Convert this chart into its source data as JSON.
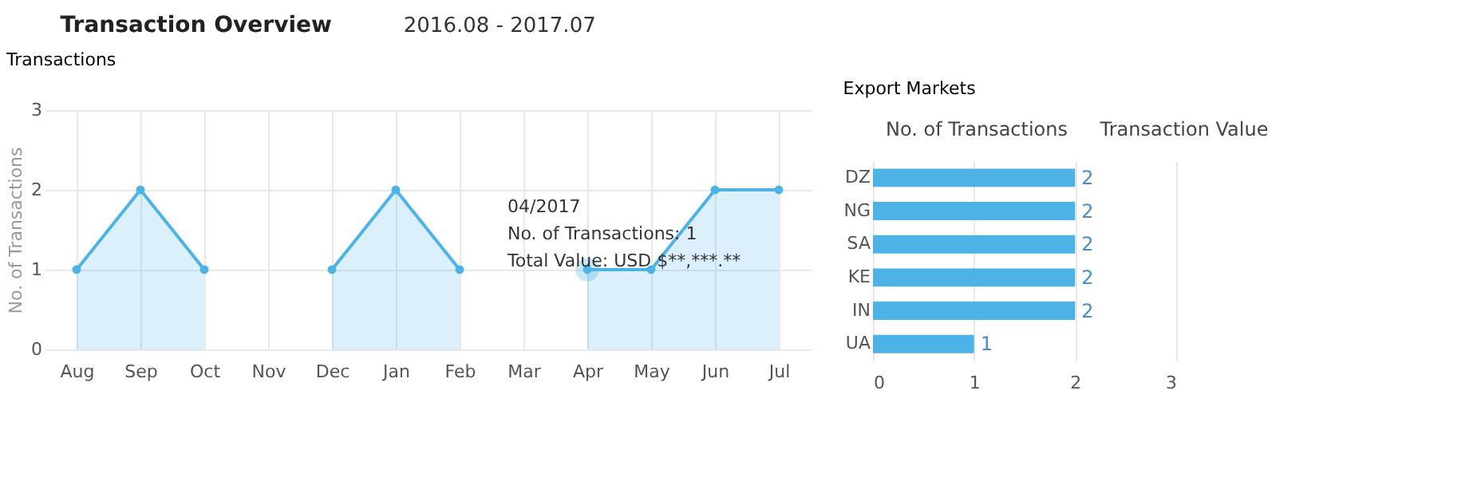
{
  "chart_data": [
    {
      "type": "area",
      "title": "Transactions",
      "ylabel": "No. of Transactions",
      "categories": [
        "Aug",
        "Sep",
        "Oct",
        "Nov",
        "Dec",
        "Jan",
        "Feb",
        "Mar",
        "Apr",
        "May",
        "Jun",
        "Jul"
      ],
      "series": [
        {
          "color": "#4db3e6",
          "values": [
            1,
            2,
            1,
            null,
            1,
            2,
            1,
            null,
            1,
            1,
            2,
            2
          ]
        }
      ],
      "ylim": [
        0,
        3
      ],
      "yticks": [
        0,
        1,
        2,
        3
      ],
      "grid": true,
      "marker": "circle",
      "annotations": [
        "Transaction Overview",
        "2016.08 - 2017.07",
        {
          "text": "04/2017\nNo. of Transactions: 1\nTotal Value: USD $**,***.**",
          "x": "Apr",
          "y": 1
        }
      ]
    },
    {
      "type": "bar",
      "orientation": "horizontal",
      "title": "Export Markets",
      "categories": [
        "DZ",
        "NG",
        "SA",
        "KE",
        "IN",
        "UA"
      ],
      "values": [
        2,
        2,
        2,
        2,
        2,
        1
      ],
      "color": "#4db3e6",
      "xlim": [
        0,
        3
      ],
      "xticks": [
        0,
        1,
        2,
        3
      ],
      "grid": "x",
      "data_labels": true,
      "annotations": [
        "No. of Transactions",
        "Transaction Value"
      ]
    }
  ]
}
